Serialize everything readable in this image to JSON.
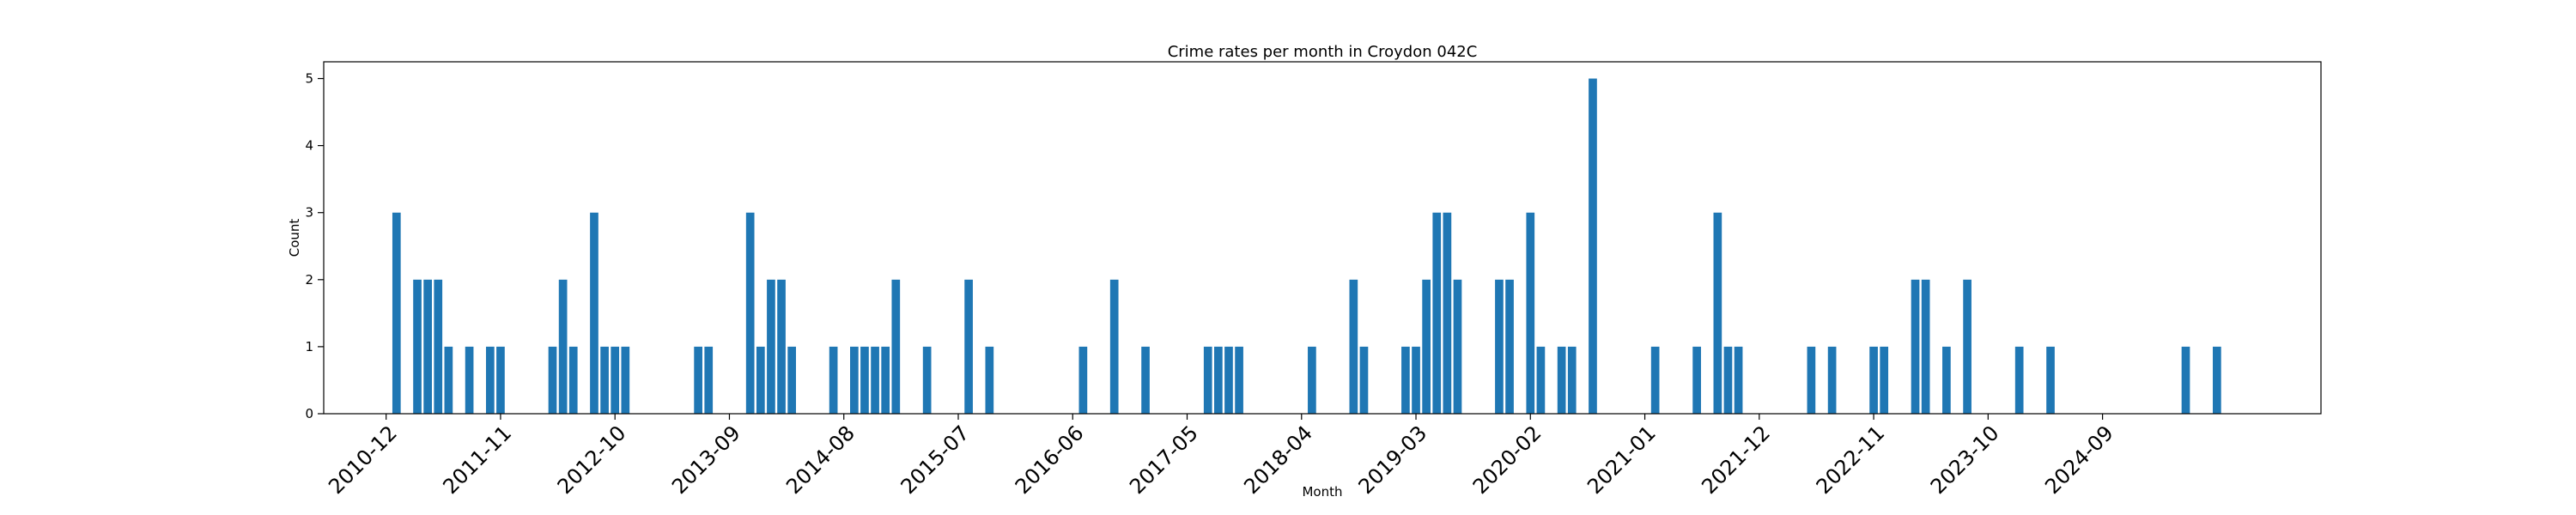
{
  "chart_data": {
    "type": "bar",
    "title": "Crime rates per month in Croydon 042C",
    "xlabel": "Month",
    "ylabel": "Count",
    "ylim": [
      0,
      5.25
    ],
    "yticks": [
      0,
      1,
      2,
      3,
      4,
      5
    ],
    "xticks": [
      "2010-12",
      "2011-11",
      "2012-10",
      "2013-09",
      "2014-08",
      "2015-07",
      "2016-06",
      "2017-05",
      "2018-04",
      "2019-03",
      "2020-02",
      "2021-01",
      "2021-12",
      "2022-11",
      "2023-10",
      "2024-09"
    ],
    "grid": false,
    "legend": "none",
    "bar_color": "#1f77b4",
    "categories": [
      "2011-01",
      "2011-03",
      "2011-04",
      "2011-05",
      "2011-06",
      "2011-08",
      "2011-10",
      "2011-11",
      "2012-04",
      "2012-05",
      "2012-06",
      "2012-08",
      "2012-09",
      "2012-10",
      "2012-11",
      "2013-06",
      "2013-07",
      "2013-11",
      "2013-12",
      "2014-01",
      "2014-02",
      "2014-03",
      "2014-07",
      "2014-09",
      "2014-10",
      "2014-11",
      "2014-12",
      "2015-01",
      "2015-04",
      "2015-08",
      "2015-10",
      "2016-07",
      "2016-10",
      "2017-01",
      "2017-07",
      "2017-08",
      "2017-09",
      "2017-10",
      "2018-05",
      "2018-09",
      "2018-10",
      "2019-02",
      "2019-03",
      "2019-04",
      "2019-05",
      "2019-06",
      "2019-07",
      "2019-11",
      "2019-12",
      "2020-02",
      "2020-03",
      "2020-05",
      "2020-06",
      "2020-08",
      "2021-02",
      "2021-06",
      "2021-08",
      "2021-09",
      "2021-10",
      "2022-05",
      "2022-07",
      "2022-11",
      "2022-12",
      "2023-03",
      "2023-04",
      "2023-06",
      "2023-08",
      "2024-01",
      "2024-04",
      "2025-05",
      "2025-08"
    ],
    "values": [
      3,
      2,
      2,
      2,
      1,
      1,
      1,
      1,
      1,
      2,
      1,
      3,
      1,
      1,
      1,
      1,
      1,
      3,
      1,
      2,
      2,
      1,
      1,
      1,
      1,
      1,
      1,
      2,
      1,
      2,
      1,
      1,
      2,
      1,
      1,
      1,
      1,
      1,
      1,
      2,
      1,
      1,
      1,
      2,
      3,
      3,
      2,
      2,
      2,
      3,
      1,
      1,
      1,
      5,
      1,
      1,
      3,
      1,
      1,
      1,
      1,
      1,
      1,
      2,
      2,
      1,
      2,
      1,
      1,
      1,
      1
    ]
  }
}
